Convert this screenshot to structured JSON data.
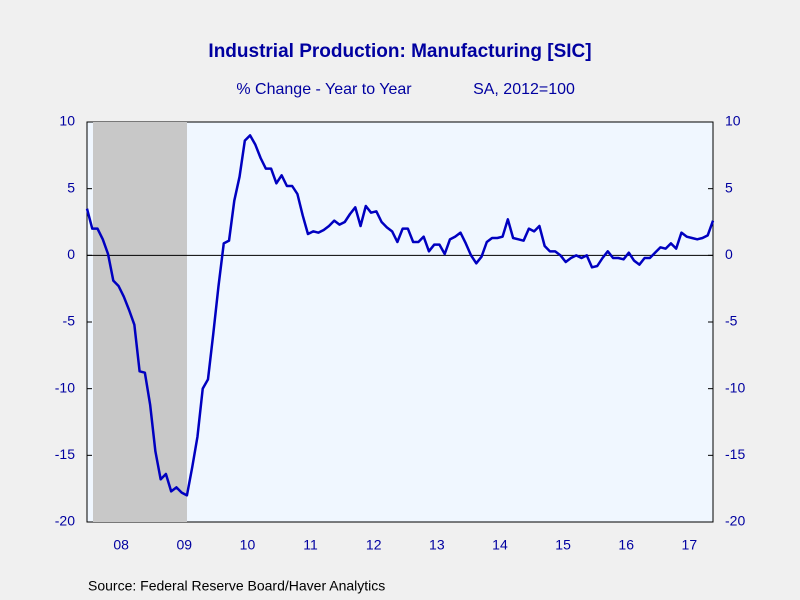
{
  "chart_data": {
    "type": "line",
    "title": "Industrial Production: Manufacturing [SIC]",
    "subtitle": [
      "% Change - Year to Year",
      "SA, 2012=100"
    ],
    "source": "Source:  Federal Reserve Board/Haver Analytics",
    "color": "#0000c0",
    "categories": [
      null,
      null,
      null,
      null,
      null,
      null,
      null,
      "08",
      null,
      null,
      null,
      null,
      null,
      null,
      null,
      null,
      null,
      null,
      null,
      "09",
      null,
      null,
      null,
      null,
      null,
      null,
      null,
      null,
      null,
      null,
      null,
      "10",
      null,
      null,
      null,
      null,
      null,
      null,
      null,
      null,
      null,
      null,
      null,
      "11",
      null,
      null,
      null,
      null,
      null,
      null,
      null,
      null,
      null,
      null,
      null,
      "12",
      null,
      null,
      null,
      null,
      null,
      null,
      null,
      null,
      null,
      null,
      null,
      "13",
      null,
      null,
      null,
      null,
      null,
      null,
      null,
      null,
      null,
      null,
      null,
      "14",
      null,
      null,
      null,
      null,
      null,
      null,
      null,
      null,
      null,
      null,
      null,
      "15",
      null,
      null,
      null,
      null,
      null,
      null,
      null,
      null,
      null,
      null,
      null,
      "16",
      null,
      null,
      null,
      null,
      null,
      null,
      null,
      null,
      null,
      null,
      null,
      "17",
      null,
      null,
      null,
      null
    ],
    "values": [
      3.5,
      2.0,
      2.0,
      1.2,
      0.1,
      -1.9,
      -2.3,
      -3.1,
      -4.1,
      -5.2,
      -8.7,
      -8.8,
      -11.2,
      -14.7,
      -16.8,
      -16.4,
      -17.7,
      -17.4,
      -17.8,
      -18.0,
      -15.9,
      -13.6,
      -10.0,
      -9.3,
      -5.9,
      -2.3,
      0.9,
      1.1,
      4.1,
      5.9,
      8.6,
      9.0,
      8.3,
      7.3,
      6.5,
      6.5,
      5.4,
      6.0,
      5.2,
      5.2,
      4.6,
      3.0,
      1.6,
      1.8,
      1.7,
      1.9,
      2.2,
      2.6,
      2.3,
      2.5,
      3.1,
      3.6,
      2.2,
      3.7,
      3.2,
      3.3,
      2.5,
      2.1,
      1.8,
      1.0,
      2.0,
      2.0,
      1.0,
      1.0,
      1.4,
      0.3,
      0.8,
      0.8,
      0.1,
      1.2,
      1.4,
      1.7,
      0.9,
      0.0,
      -0.6,
      -0.1,
      1.0,
      1.3,
      1.3,
      1.4,
      2.7,
      1.3,
      1.2,
      1.1,
      2.0,
      1.8,
      2.2,
      0.7,
      0.3,
      0.3,
      0.0,
      -0.5,
      -0.2,
      0.0,
      -0.2,
      0.0,
      -0.9,
      -0.8,
      -0.2,
      0.3,
      -0.2,
      -0.2,
      -0.3,
      0.2,
      -0.4,
      -0.7,
      -0.2,
      -0.2,
      0.2,
      0.6,
      0.5,
      0.9,
      0.5,
      1.7,
      1.4,
      1.3,
      1.2,
      1.3,
      1.5,
      2.6
    ],
    "ylim": [
      -20,
      10
    ],
    "yticks": [
      10,
      5,
      0,
      -5,
      -10,
      -15,
      -20
    ],
    "y2lim": [
      -20,
      10
    ],
    "y2ticks": [
      10,
      5,
      0,
      -5,
      -10,
      -15,
      -20
    ],
    "grid": false
  }
}
